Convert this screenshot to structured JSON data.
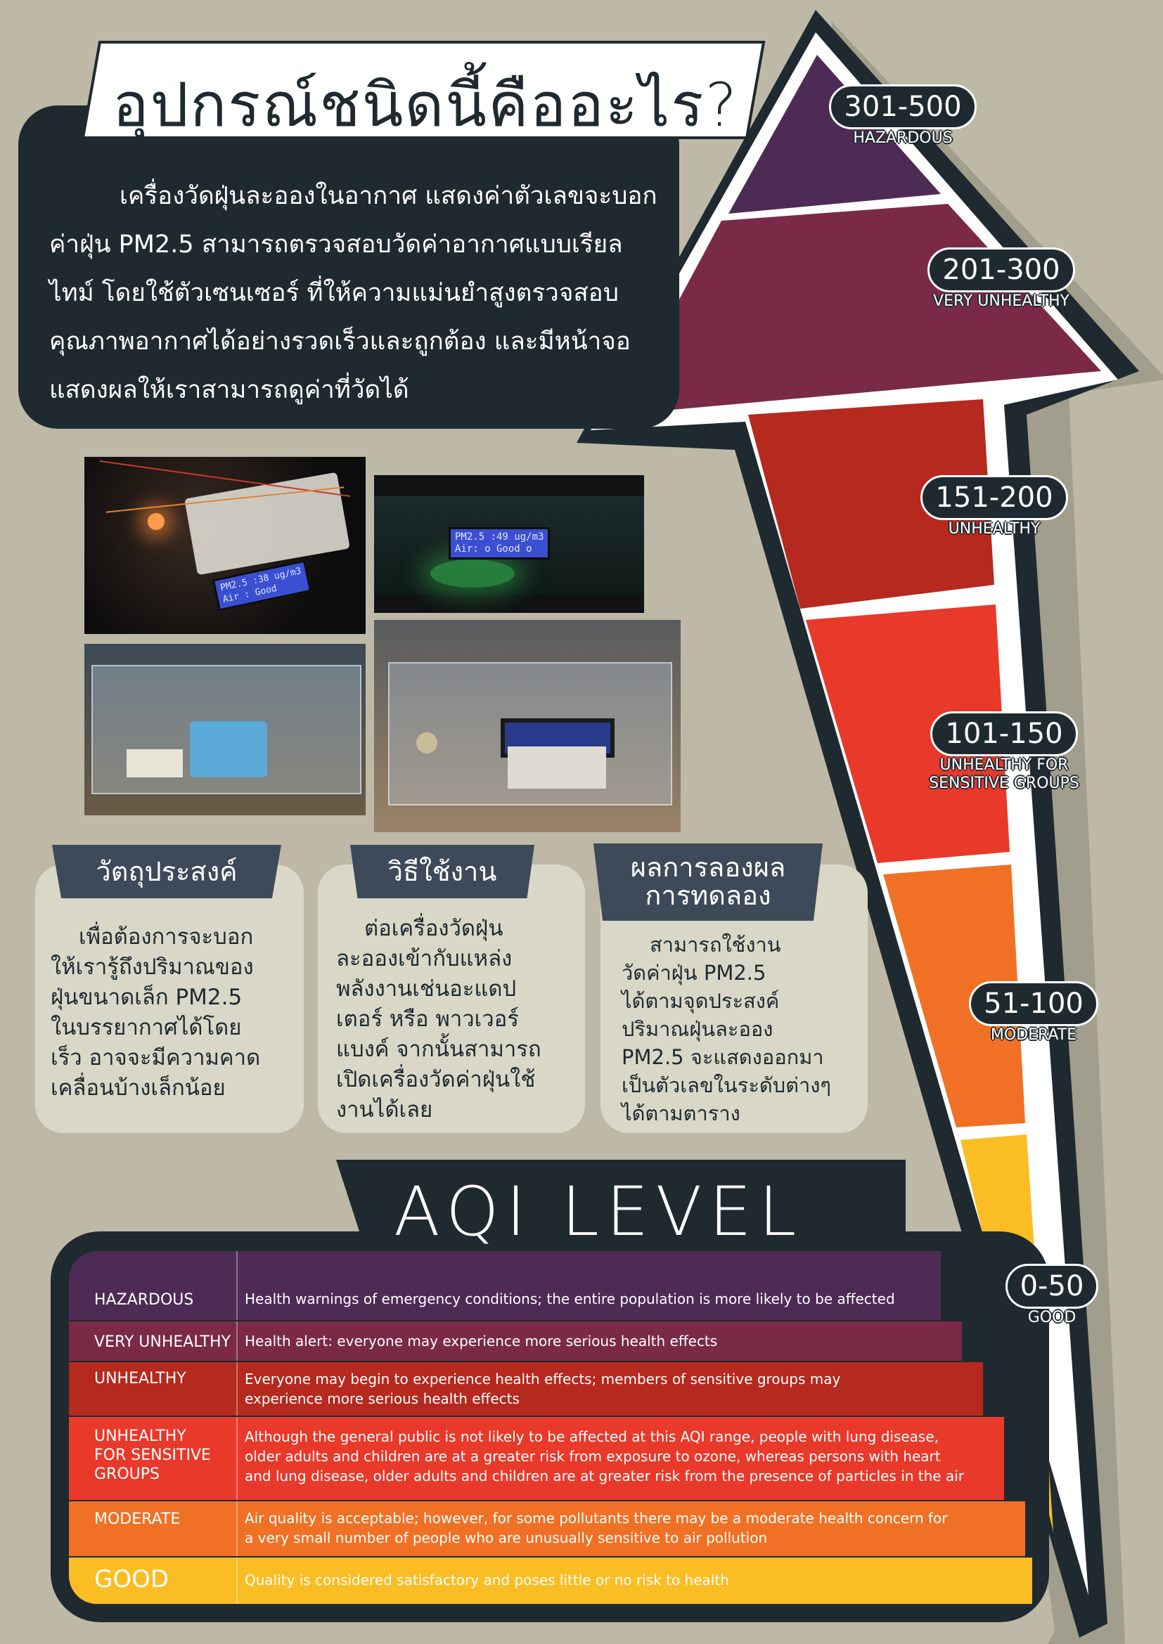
{
  "title": "อุปกรณ์ชนิดนี้คืออะไร?",
  "intro": {
    "lines": [
      "เครื่องวัดฝุ่นละอองในอากาศ แสดงค่าตัวเลขจะบอก",
      "ค่าฝุ่น PM2.5 สามารถตรวจสอบวัดค่าอากาศแบบเรียล",
      "ไทม์ โดยใช้ตัวเซนเซอร์ ที่ให้ความแม่นยำสูงตรวจสอบ",
      "คุณภาพอากาศได้อย่างรวดเร็วและถูกต้อง และมีหน้าจอ",
      "แสดงผลให้เราสามารถดูค่าที่วัดได้"
    ]
  },
  "photos": {
    "lcd1": [
      "PM2.5 :38 ug/m3",
      "Air : Good"
    ],
    "lcd2": [
      "PM2.5 :49 ug/m3",
      "Air: o Good o"
    ]
  },
  "cards": [
    {
      "title": [
        "วัตถุประสงค์"
      ],
      "lines": [
        "เพื่อต้องการจะบอก",
        "ให้เรารู้ถึงปริมาณของ",
        "ฝุ่นขนาดเล็ก PM2.5",
        "ในบรรยากาศได้โดย",
        "เร็ว อาจจะมีความคาด",
        "เคลื่อนบ้างเล็กน้อย"
      ]
    },
    {
      "title": [
        "วิธีใช้งาน"
      ],
      "lines": [
        "ต่อเครื่องวัดฝุ่น",
        "ละอองเข้ากับแหล่ง",
        "พลังงานเช่นอะแดป",
        "เตอร์ หรือ พาวเวอร์",
        "แบงค์ จากนั้นสามารถ",
        "เปิดเครื่องวัดค่าฝุ่นใช้",
        "งานได้เลย"
      ]
    },
    {
      "title": [
        "ผลการลองผล",
        "การทดลอง"
      ],
      "lines": [
        "สามารถใช้งาน",
        "วัดค่าฝุ่น PM2.5",
        "ได้ตามจุดประสงค์",
        "ปริมาณฝุ่นละออง",
        "PM2.5 จะแสดงออกมา",
        "เป็นตัวเลขในระดับต่างๆ",
        "ได้ตามตาราง"
      ]
    }
  ],
  "aqi": {
    "heading": "AQI LEVEL",
    "rows": [
      {
        "level": [
          "HAZARDOUS"
        ],
        "desc": [
          "Health warnings of emergency conditions; the entire population is more likely to be affected"
        ],
        "color": "#4e2b55"
      },
      {
        "level": [
          "VERY UNHEALTHY"
        ],
        "desc": [
          "Health alert: everyone may experience more serious health effects"
        ],
        "color": "#7a2a47"
      },
      {
        "level": [
          "UNHEALTHY"
        ],
        "desc": [
          "Everyone may begin to experience health effects; members of sensitive groups may",
          "experience more serious health effects"
        ],
        "color": "#b5291e"
      },
      {
        "level": [
          "UNHEALTHY",
          "FOR SENSITIVE",
          "GROUPS"
        ],
        "desc": [
          "Although the general public is not likely to be affected at this AQI range, people with lung disease,",
          "older adults and children are at a greater risk from exposure to ozone, whereas persons with heart",
          "and lung disease, older adults and children are at greater risk from the presence of particles in the air"
        ],
        "color": "#e8392a"
      },
      {
        "level": [
          "MODERATE"
        ],
        "desc": [
          "Air quality is acceptable; however, for some pollutants there may be a moderate health concern for",
          "a very small number of people who are unusually sensitive to air pollution"
        ],
        "color": "#f07125"
      },
      {
        "level": [
          "GOOD"
        ],
        "desc": [
          "Quality is considered satisfactory and poses little or no risk to health"
        ],
        "color": "#fbbd24"
      }
    ]
  },
  "badges": [
    {
      "range": "301-500",
      "label": [
        "HAZARDOUS"
      ]
    },
    {
      "range": "201-300",
      "label": [
        "VERY UNHEALTHY"
      ]
    },
    {
      "range": "151-200",
      "label": [
        "UNHEALTHY"
      ]
    },
    {
      "range": "101-150",
      "label": [
        "UNHEALTHY FOR",
        "SENSITIVE GROUPS"
      ]
    },
    {
      "range": "51-100",
      "label": [
        "MODERATE"
      ]
    },
    {
      "range": "0-50",
      "label": [
        "GOOD"
      ]
    }
  ],
  "colors": {
    "background": "#bdb9a6",
    "dark": "#1f2930",
    "hazardous": "#4e2b55",
    "very_unhealthy": "#7a2a47",
    "unhealthy": "#b5291e",
    "sensitive": "#e8392a",
    "moderate": "#f07125",
    "good": "#fbbd24"
  }
}
